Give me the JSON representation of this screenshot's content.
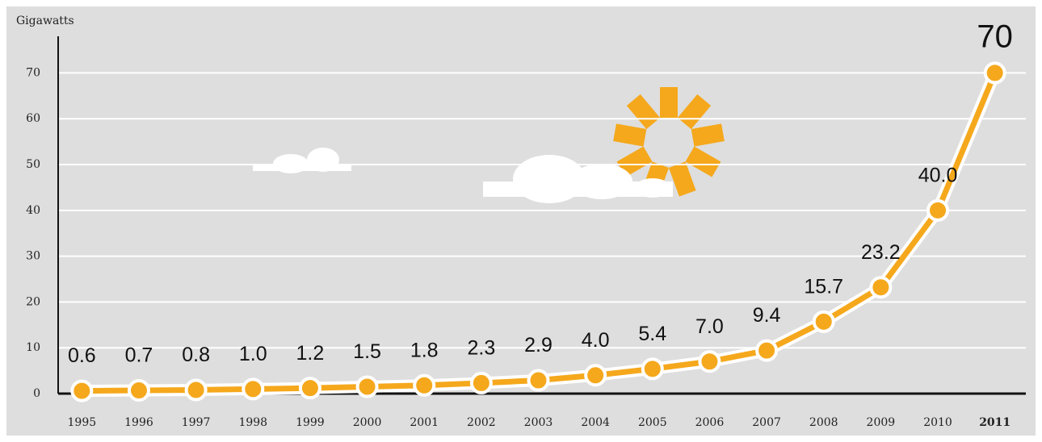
{
  "chart_data": {
    "type": "line",
    "y_label": "Gigawatts",
    "categories": [
      "1995",
      "1996",
      "1997",
      "1998",
      "1999",
      "2000",
      "2001",
      "2002",
      "2003",
      "2004",
      "2005",
      "2006",
      "2007",
      "2008",
      "2009",
      "2010",
      "2011"
    ],
    "values": [
      0.6,
      0.7,
      0.8,
      1.0,
      1.2,
      1.5,
      1.8,
      2.3,
      2.9,
      4.0,
      5.4,
      7.0,
      9.4,
      15.7,
      23.2,
      40.0,
      70
    ],
    "value_labels": [
      "0.6",
      "0.7",
      "0.8",
      "1.0",
      "1.2",
      "1.5",
      "1.8",
      "2.3",
      "2.9",
      "4.0",
      "5.4",
      "7.0",
      "9.4",
      "15.7",
      "23.2",
      "40.0",
      "70"
    ],
    "color": "#f5a81c",
    "ylim": [
      0,
      78
    ],
    "yticks": [
      0,
      10,
      20,
      30,
      40,
      50,
      60,
      70
    ],
    "grid": true
  }
}
